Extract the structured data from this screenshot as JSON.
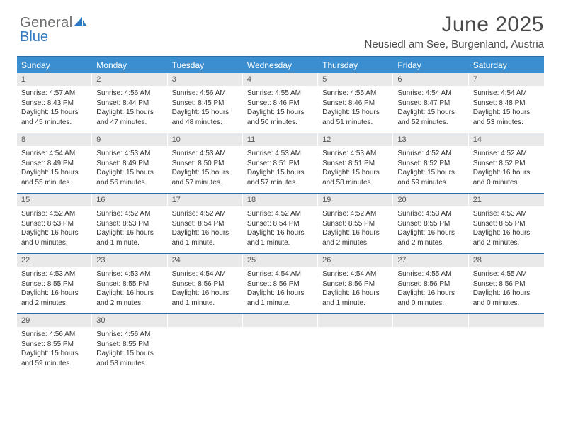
{
  "brand": {
    "word1": "General",
    "word2": "Blue"
  },
  "title": "June 2025",
  "subtitle": "Neusiedl am See, Burgenland, Austria",
  "colors": {
    "header_bg": "#3b8fd0",
    "header_border": "#2d6aa8",
    "daynum_bg": "#e9e9e9",
    "text": "#333333",
    "brand_gray": "#6b6b6b",
    "brand_blue": "#2f78c2"
  },
  "dayNames": [
    "Sunday",
    "Monday",
    "Tuesday",
    "Wednesday",
    "Thursday",
    "Friday",
    "Saturday"
  ],
  "weeks": [
    [
      {
        "n": "1",
        "sr": "4:57 AM",
        "ss": "8:43 PM",
        "dl": "15 hours and 45 minutes."
      },
      {
        "n": "2",
        "sr": "4:56 AM",
        "ss": "8:44 PM",
        "dl": "15 hours and 47 minutes."
      },
      {
        "n": "3",
        "sr": "4:56 AM",
        "ss": "8:45 PM",
        "dl": "15 hours and 48 minutes."
      },
      {
        "n": "4",
        "sr": "4:55 AM",
        "ss": "8:46 PM",
        "dl": "15 hours and 50 minutes."
      },
      {
        "n": "5",
        "sr": "4:55 AM",
        "ss": "8:46 PM",
        "dl": "15 hours and 51 minutes."
      },
      {
        "n": "6",
        "sr": "4:54 AM",
        "ss": "8:47 PM",
        "dl": "15 hours and 52 minutes."
      },
      {
        "n": "7",
        "sr": "4:54 AM",
        "ss": "8:48 PM",
        "dl": "15 hours and 53 minutes."
      }
    ],
    [
      {
        "n": "8",
        "sr": "4:54 AM",
        "ss": "8:49 PM",
        "dl": "15 hours and 55 minutes."
      },
      {
        "n": "9",
        "sr": "4:53 AM",
        "ss": "8:49 PM",
        "dl": "15 hours and 56 minutes."
      },
      {
        "n": "10",
        "sr": "4:53 AM",
        "ss": "8:50 PM",
        "dl": "15 hours and 57 minutes."
      },
      {
        "n": "11",
        "sr": "4:53 AM",
        "ss": "8:51 PM",
        "dl": "15 hours and 57 minutes."
      },
      {
        "n": "12",
        "sr": "4:53 AM",
        "ss": "8:51 PM",
        "dl": "15 hours and 58 minutes."
      },
      {
        "n": "13",
        "sr": "4:52 AM",
        "ss": "8:52 PM",
        "dl": "15 hours and 59 minutes."
      },
      {
        "n": "14",
        "sr": "4:52 AM",
        "ss": "8:52 PM",
        "dl": "16 hours and 0 minutes."
      }
    ],
    [
      {
        "n": "15",
        "sr": "4:52 AM",
        "ss": "8:53 PM",
        "dl": "16 hours and 0 minutes."
      },
      {
        "n": "16",
        "sr": "4:52 AM",
        "ss": "8:53 PM",
        "dl": "16 hours and 1 minute."
      },
      {
        "n": "17",
        "sr": "4:52 AM",
        "ss": "8:54 PM",
        "dl": "16 hours and 1 minute."
      },
      {
        "n": "18",
        "sr": "4:52 AM",
        "ss": "8:54 PM",
        "dl": "16 hours and 1 minute."
      },
      {
        "n": "19",
        "sr": "4:52 AM",
        "ss": "8:55 PM",
        "dl": "16 hours and 2 minutes."
      },
      {
        "n": "20",
        "sr": "4:53 AM",
        "ss": "8:55 PM",
        "dl": "16 hours and 2 minutes."
      },
      {
        "n": "21",
        "sr": "4:53 AM",
        "ss": "8:55 PM",
        "dl": "16 hours and 2 minutes."
      }
    ],
    [
      {
        "n": "22",
        "sr": "4:53 AM",
        "ss": "8:55 PM",
        "dl": "16 hours and 2 minutes."
      },
      {
        "n": "23",
        "sr": "4:53 AM",
        "ss": "8:55 PM",
        "dl": "16 hours and 2 minutes."
      },
      {
        "n": "24",
        "sr": "4:54 AM",
        "ss": "8:56 PM",
        "dl": "16 hours and 1 minute."
      },
      {
        "n": "25",
        "sr": "4:54 AM",
        "ss": "8:56 PM",
        "dl": "16 hours and 1 minute."
      },
      {
        "n": "26",
        "sr": "4:54 AM",
        "ss": "8:56 PM",
        "dl": "16 hours and 1 minute."
      },
      {
        "n": "27",
        "sr": "4:55 AM",
        "ss": "8:56 PM",
        "dl": "16 hours and 0 minutes."
      },
      {
        "n": "28",
        "sr": "4:55 AM",
        "ss": "8:56 PM",
        "dl": "16 hours and 0 minutes."
      }
    ],
    [
      {
        "n": "29",
        "sr": "4:56 AM",
        "ss": "8:55 PM",
        "dl": "15 hours and 59 minutes."
      },
      {
        "n": "30",
        "sr": "4:56 AM",
        "ss": "8:55 PM",
        "dl": "15 hours and 58 minutes."
      },
      {
        "empty": true
      },
      {
        "empty": true
      },
      {
        "empty": true
      },
      {
        "empty": true
      },
      {
        "empty": true
      }
    ]
  ],
  "labels": {
    "sunrise": "Sunrise:",
    "sunset": "Sunset:",
    "daylight": "Daylight:"
  }
}
